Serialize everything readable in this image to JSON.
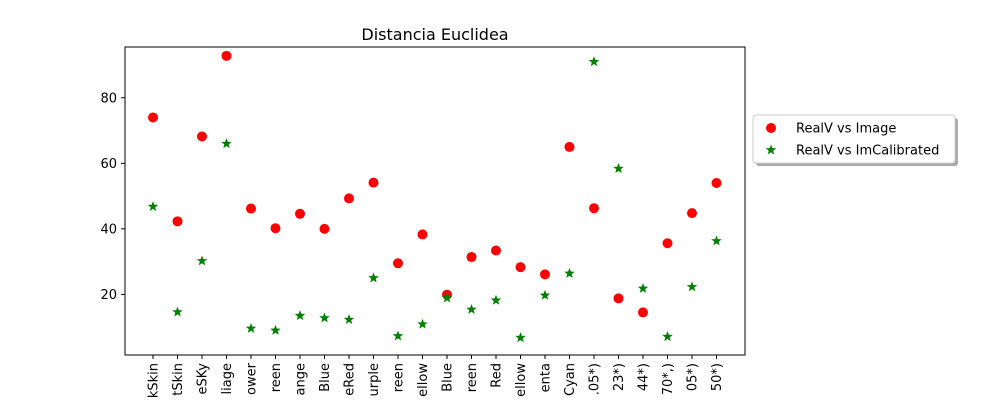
{
  "chart_data": {
    "type": "scatter",
    "title": "Distancia Euclidea",
    "xlabel": "",
    "ylabel": "",
    "categories": [
      "kSkin",
      "tSkin",
      "eSKy",
      "liage",
      "ower",
      "reen",
      "ange",
      "Blue",
      "eRed",
      "urple",
      "reen",
      "ellow",
      "Blue",
      "reen",
      "Red",
      "ellow",
      "enta",
      "Cyan",
      ".05*)",
      "23*)",
      "44*)",
      "70*,)",
      "05*)",
      "50*)"
    ],
    "yticks": [
      20,
      40,
      60,
      80
    ],
    "ylim": [
      1.5,
      95.5
    ],
    "grid": false,
    "legend_position": "outside-right",
    "series": [
      {
        "name": "RealV vs Image",
        "marker": "circle",
        "color": "#ff0000",
        "values": [
          74,
          42.3,
          68.2,
          92.8,
          46.2,
          40.2,
          44.6,
          40,
          49.3,
          54.1,
          29.5,
          38.3,
          19.9,
          31.4,
          33.4,
          28.3,
          26.1,
          65,
          46.3,
          18.8,
          14.5,
          35.6,
          44.8,
          54
        ]
      },
      {
        "name": "RealV vs ImCalibrated",
        "marker": "star",
        "color": "#008000",
        "values": [
          46.8,
          14.6,
          30.2,
          66,
          9.6,
          9,
          13.5,
          12.8,
          12.3,
          25,
          7.3,
          10.9,
          18.9,
          15.4,
          18.2,
          6.8,
          19.7,
          26.4,
          91,
          58.4,
          21.8,
          7.1,
          22.3,
          36.3
        ]
      }
    ]
  }
}
